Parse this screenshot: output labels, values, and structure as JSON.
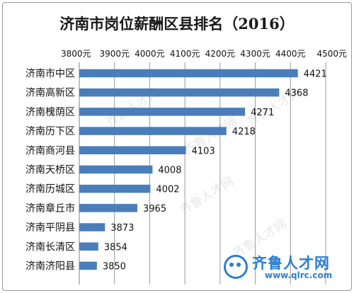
{
  "chart_data": {
    "type": "bar",
    "orientation": "horizontal",
    "title": "济南市岗位薪酬区县排名（2016）",
    "categories": [
      "济南市中区",
      "济南高新区",
      "济南槐荫区",
      "济南历下区",
      "济南商河县",
      "济南天桥区",
      "济南历城区",
      "济南章丘市",
      "济南平阴县",
      "济南长清区",
      "济南济阳县"
    ],
    "values": [
      4421,
      4368,
      4271,
      4218,
      4103,
      4008,
      4002,
      3965,
      3873,
      3854,
      3850
    ],
    "xlim": [
      3800,
      4500
    ],
    "tick_values": [
      3800,
      3900,
      4000,
      4100,
      4200,
      4300,
      4400,
      4500
    ],
    "tick_labels": [
      "3800元",
      "3900元",
      "4000元",
      "4100元",
      "4200元",
      "4300元",
      "4400元",
      "4500元"
    ],
    "x_axis_position": "top",
    "grid": true,
    "data_labels": true,
    "bar_color": "#4a7ebb",
    "grid_color": "#9a9a9a"
  },
  "watermark": {
    "text": "齐鲁人才网"
  },
  "logo": {
    "name": "齐鲁人才网",
    "url": "www.qlrc.com",
    "color": "#2c7fd0",
    "icon": "frog-eye-icon"
  }
}
